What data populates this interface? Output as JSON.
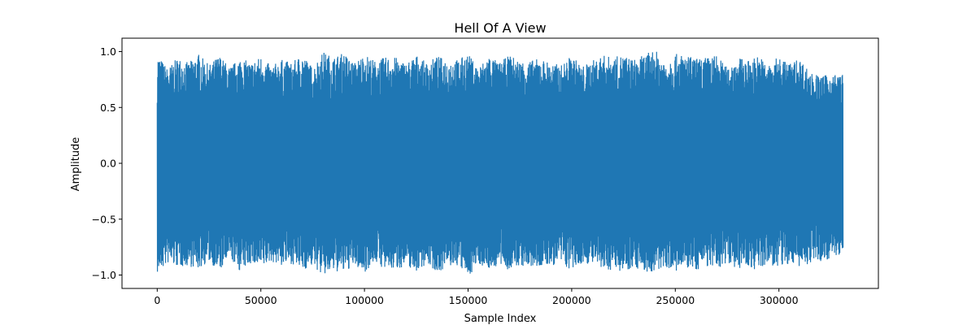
{
  "chart_data": {
    "type": "line",
    "title": "Hell Of A View",
    "xlabel": "Sample Index",
    "ylabel": "Amplitude",
    "xlim": [
      -17000,
      348000
    ],
    "ylim": [
      -1.12,
      1.12
    ],
    "x_ticks": [
      0,
      50000,
      100000,
      150000,
      200000,
      250000,
      300000
    ],
    "x_tick_labels": [
      "0",
      "50000",
      "100000",
      "150000",
      "200000",
      "250000",
      "300000"
    ],
    "y_ticks": [
      -1.0,
      -0.5,
      0.0,
      0.5,
      1.0
    ],
    "y_tick_labels": [
      "−1.0",
      "−0.5",
      "0.0",
      "0.5",
      "1.0"
    ],
    "grid": false,
    "series": [
      {
        "color": "#1f77b4",
        "x_start": 0,
        "x_end": 331000,
        "envelope_x": [
          0,
          5000,
          10000,
          15000,
          20000,
          25000,
          30000,
          35000,
          40000,
          45000,
          50000,
          55000,
          60000,
          65000,
          70000,
          75000,
          80000,
          85000,
          90000,
          95000,
          100000,
          105000,
          110000,
          115000,
          120000,
          125000,
          130000,
          135000,
          140000,
          145000,
          150000,
          155000,
          160000,
          165000,
          170000,
          175000,
          180000,
          185000,
          190000,
          195000,
          200000,
          205000,
          210000,
          215000,
          220000,
          225000,
          230000,
          235000,
          240000,
          245000,
          250000,
          255000,
          260000,
          265000,
          270000,
          275000,
          280000,
          285000,
          290000,
          295000,
          300000,
          305000,
          310000,
          315000,
          320000,
          325000,
          331000
        ],
        "envelope_max": [
          0.98,
          0.85,
          0.95,
          0.9,
          0.98,
          0.88,
          0.97,
          0.86,
          0.95,
          0.9,
          0.96,
          0.87,
          0.93,
          0.9,
          0.98,
          0.86,
          1.0,
          0.95,
          0.99,
          0.9,
          0.98,
          0.92,
          0.95,
          0.95,
          0.9,
          0.97,
          0.9,
          0.96,
          0.93,
          0.93,
          0.98,
          0.86,
          0.97,
          0.9,
          0.97,
          0.92,
          0.92,
          0.94,
          0.9,
          0.88,
          0.97,
          0.87,
          0.92,
          0.97,
          0.95,
          0.97,
          0.93,
          0.97,
          1.02,
          0.92,
          0.98,
          0.97,
          0.94,
          0.95,
          0.97,
          0.86,
          0.95,
          0.92,
          0.97,
          0.88,
          0.96,
          0.9,
          0.94,
          0.82,
          0.78,
          0.8,
          0.8
        ],
        "envelope_min": [
          -0.99,
          -0.9,
          -0.93,
          -0.92,
          -0.95,
          -0.88,
          -0.97,
          -0.85,
          -0.97,
          -0.9,
          -0.95,
          -0.88,
          -0.92,
          -0.9,
          -0.96,
          -0.92,
          -1.01,
          -0.97,
          -0.98,
          -0.92,
          -0.98,
          -0.88,
          -0.96,
          -0.95,
          -0.92,
          -0.97,
          -0.9,
          -0.98,
          -0.93,
          -0.92,
          -1.02,
          -0.9,
          -0.95,
          -0.92,
          -0.96,
          -0.92,
          -0.94,
          -0.93,
          -0.92,
          -0.9,
          -0.97,
          -0.9,
          -0.9,
          -0.97,
          -0.95,
          -0.97,
          -0.93,
          -0.97,
          -1.0,
          -0.92,
          -0.98,
          -0.94,
          -0.96,
          -0.92,
          -0.97,
          -0.88,
          -0.95,
          -0.92,
          -0.97,
          -0.9,
          -0.95,
          -0.9,
          -0.93,
          -0.9,
          -0.88,
          -0.85,
          -0.82
        ]
      }
    ]
  }
}
